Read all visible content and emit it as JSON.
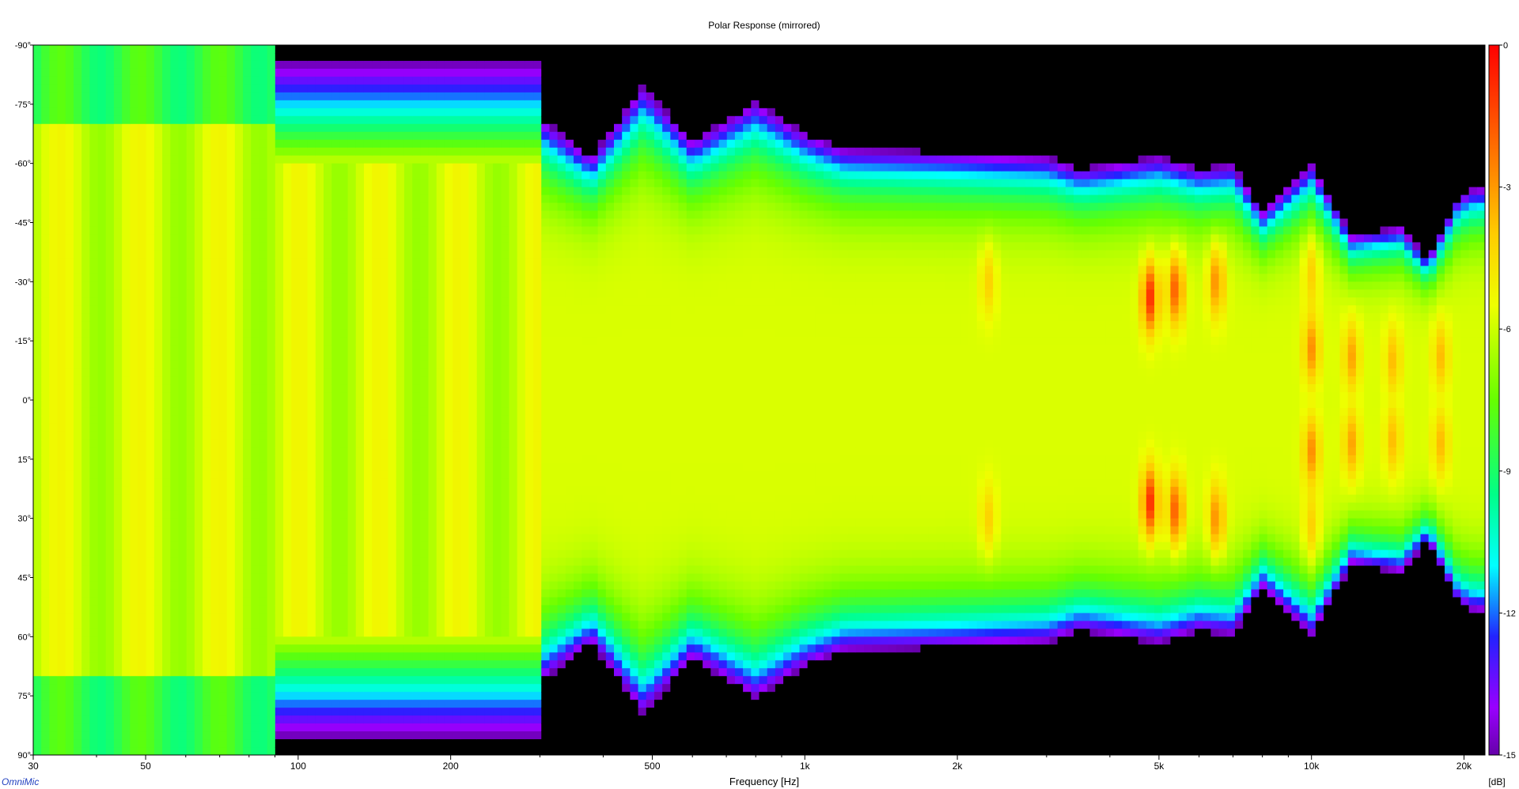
{
  "chart_data": {
    "type": "heatmap",
    "title": "Polar Response (mirrored)",
    "xlabel": "Frequency [Hz]",
    "ylabel": "",
    "x_scale": "log",
    "xlim": [
      30,
      22000
    ],
    "ylim": [
      -90,
      90
    ],
    "x_ticks": [
      {
        "value": 30,
        "label": "30"
      },
      {
        "value": 50,
        "label": "50"
      },
      {
        "value": 100,
        "label": "100"
      },
      {
        "value": 200,
        "label": "200"
      },
      {
        "value": 500,
        "label": "500"
      },
      {
        "value": 1000,
        "label": "1k"
      },
      {
        "value": 2000,
        "label": "2k"
      },
      {
        "value": 5000,
        "label": "5k"
      },
      {
        "value": 10000,
        "label": "10k"
      },
      {
        "value": 20000,
        "label": "20k"
      }
    ],
    "x_minor_ticks": [
      40,
      60,
      70,
      80,
      90,
      300,
      400,
      600,
      700,
      800,
      900,
      3000,
      4000,
      6000,
      7000,
      8000,
      9000
    ],
    "y_ticks": [
      {
        "value": -90,
        "label": "-90°"
      },
      {
        "value": -75,
        "label": "-75°"
      },
      {
        "value": -60,
        "label": "-60°"
      },
      {
        "value": -45,
        "label": "-45°"
      },
      {
        "value": -30,
        "label": "-30°"
      },
      {
        "value": -15,
        "label": "-15°"
      },
      {
        "value": 0,
        "label": "0°"
      },
      {
        "value": 15,
        "label": "15°"
      },
      {
        "value": 30,
        "label": "30°"
      },
      {
        "value": 45,
        "label": "45°"
      },
      {
        "value": 60,
        "label": "60°"
      },
      {
        "value": 75,
        "label": "75°"
      },
      {
        "value": 90,
        "label": "90°"
      }
    ],
    "colorbar": {
      "unit": "[dB]",
      "range": [
        -15,
        0
      ],
      "ticks": [
        {
          "value": 0,
          "label": "0"
        },
        {
          "value": -3,
          "label": "-3"
        },
        {
          "value": -6,
          "label": "-6"
        },
        {
          "value": -9,
          "label": "-9"
        },
        {
          "value": -12,
          "label": "-12"
        },
        {
          "value": -15,
          "label": "-15"
        }
      ],
      "colors": [
        {
          "value": 0,
          "color": "#ff0000"
        },
        {
          "value": -2,
          "color": "#ff6600"
        },
        {
          "value": -4,
          "color": "#ffcc00"
        },
        {
          "value": -5.5,
          "color": "#eeff00"
        },
        {
          "value": -7.5,
          "color": "#66ff00"
        },
        {
          "value": -9.5,
          "color": "#00ff88"
        },
        {
          "value": -11,
          "color": "#00ffff"
        },
        {
          "value": -12.5,
          "color": "#2222ff"
        },
        {
          "value": -14,
          "color": "#9900ff"
        },
        {
          "value": -15,
          "color": "#6600aa"
        }
      ],
      "below_range_color": "#000000"
    },
    "beamwidth_contour": {
      "description_hz_vs_angle": "approx -15 dB boundary",
      "points": [
        {
          "f": 300,
          "angle": 72
        },
        {
          "f": 380,
          "angle": 62
        },
        {
          "f": 480,
          "angle": 80
        },
        {
          "f": 600,
          "angle": 66
        },
        {
          "f": 800,
          "angle": 76
        },
        {
          "f": 1000,
          "angle": 68
        },
        {
          "f": 1200,
          "angle": 64
        },
        {
          "f": 2000,
          "angle": 63
        },
        {
          "f": 3000,
          "angle": 62
        },
        {
          "f": 3500,
          "angle": 59
        },
        {
          "f": 5000,
          "angle": 62
        },
        {
          "f": 6000,
          "angle": 59
        },
        {
          "f": 7000,
          "angle": 60
        },
        {
          "f": 8000,
          "angle": 48
        },
        {
          "f": 10000,
          "angle": 60
        },
        {
          "f": 12000,
          "angle": 42
        },
        {
          "f": 15000,
          "angle": 44
        },
        {
          "f": 17000,
          "angle": 36
        },
        {
          "f": 19500,
          "angle": 52
        },
        {
          "f": 21000,
          "angle": 54
        }
      ]
    },
    "hot_spots": [
      {
        "f": 4800,
        "angle": 26,
        "db": -0.5
      },
      {
        "f": 5400,
        "angle": 28,
        "db": -1.5
      },
      {
        "f": 6500,
        "angle": 30,
        "db": -2.5
      },
      {
        "f": 10000,
        "angle": 13,
        "db": -2.5
      },
      {
        "f": 10000,
        "angle": 32,
        "db": -4
      },
      {
        "f": 12000,
        "angle": 11,
        "db": -3
      },
      {
        "f": 14500,
        "angle": 10,
        "db": -3.5
      },
      {
        "f": 18000,
        "angle": 11,
        "db": -3.5
      },
      {
        "f": 2300,
        "angle": 30,
        "db": -4
      }
    ]
  },
  "footer": {
    "brand": "OmniMic"
  }
}
